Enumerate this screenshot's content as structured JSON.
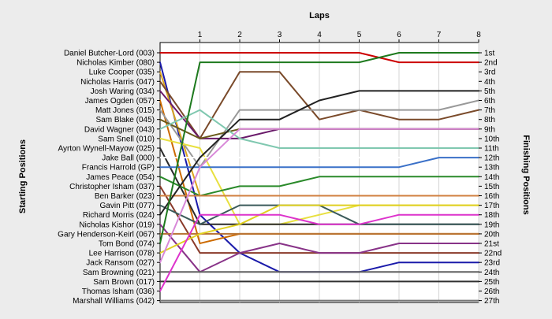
{
  "chart_data": {
    "type": "line",
    "title": "",
    "xlabel": "Laps",
    "ylabel_left": "Starting Positions",
    "ylabel_right": "Finishing Positions",
    "laps": [
      1,
      2,
      3,
      4,
      5,
      6,
      7,
      8
    ],
    "starting_labels": [
      "Daniel Butcher-Lord (003)",
      "Nicholas Kimber (080)",
      "Luke Cooper (035)",
      "Nicholas Harris (047)",
      "Josh Waring (034)",
      "James Ogden (057)",
      "Matt Jones (015)",
      "Sam Blake (045)",
      "David Wagner (043)",
      "Sam Snell (010)",
      "Ayrton Wynell-Mayow (025)",
      "Jake Ball (000)",
      "Francis Harrold (GP)",
      "James Peace (054)",
      "Christopher Isham (037)",
      "Ben Barker (023)",
      "Gavin Pitt (077)",
      "Richard Morris (024)",
      "Nicholas Kishor (019)",
      "Gary Henderson-Keirl (067)",
      "Tom Bond (074)",
      "Lee Harrison (078)",
      "Jack Ransom (027)",
      "Sam Browning (021)",
      "Sam Brown (017)",
      "Thomas Isham (036)",
      "Marshall Williams (042)"
    ],
    "finishing_labels": [
      "1st",
      "2nd",
      "3rd",
      "4th",
      "5th",
      "6th",
      "7th",
      "8th",
      "9th",
      "10th",
      "11th",
      "12th",
      "13th",
      "14th",
      "15th",
      "16th",
      "17th",
      "18th",
      "19th",
      "20th",
      "21st",
      "22nd",
      "23rd",
      "24th",
      "25th",
      "26th",
      "27th"
    ],
    "series": [
      {
        "color": "#cc0000",
        "positions": [
          1,
          1,
          1,
          1,
          1,
          1,
          2,
          2,
          2
        ]
      },
      {
        "color": "#1a1aaa",
        "positions": [
          2,
          18,
          22,
          24,
          24,
          24,
          23,
          23,
          23
        ]
      },
      {
        "color": "#daa520",
        "positions": [
          3,
          16,
          16,
          16,
          16,
          16,
          16,
          16,
          16
        ]
      },
      {
        "color": "#7a4a2a",
        "positions": [
          4,
          10,
          3,
          3,
          8,
          7,
          8,
          8,
          7
        ]
      },
      {
        "color": "#6a1a6a",
        "positions": [
          5,
          10,
          10,
          9,
          9,
          9,
          9,
          9,
          9
        ]
      },
      {
        "color": "#cc6a00",
        "positions": [
          6,
          21,
          20,
          20,
          20,
          20,
          20,
          20,
          20
        ]
      },
      {
        "color": "#999999",
        "positions": [
          7,
          13,
          7,
          7,
          7,
          7,
          7,
          7,
          6
        ]
      },
      {
        "color": "#6a5a1a",
        "positions": [
          8,
          10,
          9,
          9,
          9,
          9,
          9,
          9,
          9
        ]
      },
      {
        "color": "#80c8b0",
        "positions": [
          9,
          7,
          10,
          11,
          11,
          11,
          11,
          11,
          11
        ]
      },
      {
        "color": "#e8e040",
        "positions": [
          10,
          11,
          19,
          19,
          18,
          17,
          17,
          17,
          17
        ]
      },
      {
        "color": "#2a2a2a",
        "positions": [
          11,
          19,
          19,
          19,
          19,
          19,
          19,
          19,
          19
        ]
      },
      {
        "color": "#ffffff",
        "positions": [
          12,
          12,
          12,
          12,
          12,
          12,
          12,
          12,
          12
        ]
      },
      {
        "color": "#3a70c8",
        "positions": [
          13,
          13,
          13,
          13,
          13,
          13,
          13,
          12,
          12
        ]
      },
      {
        "color": "#2a8a2a",
        "positions": [
          14,
          16,
          15,
          15,
          14,
          14,
          14,
          14,
          14
        ]
      },
      {
        "color": "#8a3a2a",
        "positions": [
          15,
          22,
          22,
          22,
          22,
          22,
          22,
          22,
          22
        ]
      },
      {
        "color": "#d08040",
        "positions": [
          16,
          16,
          16,
          16,
          16,
          16,
          16,
          16,
          16
        ]
      },
      {
        "color": "#3a5a5a",
        "positions": [
          17,
          19,
          17,
          17,
          17,
          19,
          19,
          19,
          19
        ]
      },
      {
        "color": "#222222",
        "positions": [
          18,
          12,
          8,
          8,
          6,
          5,
          5,
          5,
          5
        ]
      },
      {
        "color": "#883388",
        "positions": [
          19,
          24,
          22,
          21,
          22,
          22,
          21,
          21,
          21
        ]
      },
      {
        "color": "#b87333",
        "positions": [
          20,
          20,
          20,
          20,
          20,
          20,
          20,
          20,
          20
        ]
      },
      {
        "color": "#1e7a1e",
        "positions": [
          21,
          2,
          2,
          2,
          2,
          2,
          1,
          1,
          1
        ]
      },
      {
        "color": "#e0d020",
        "positions": [
          22,
          20,
          19,
          17,
          17,
          17,
          17,
          17,
          17
        ]
      },
      {
        "color": "#d888d8",
        "positions": [
          23,
          13,
          9,
          9,
          9,
          9,
          9,
          9,
          9
        ]
      },
      {
        "color": "#606060",
        "positions": [
          24,
          24,
          24,
          24,
          24,
          24,
          24,
          24,
          24
        ]
      },
      {
        "color": "#303030",
        "positions": [
          25,
          25,
          25,
          25,
          25,
          25,
          25,
          25,
          25
        ]
      },
      {
        "color": "#dd33cc",
        "positions": [
          26,
          18,
          18,
          18,
          19,
          19,
          18,
          18,
          18
        ]
      },
      {
        "color": "#777777",
        "positions": [
          27,
          27,
          27,
          27,
          27,
          27,
          27,
          27,
          27
        ]
      }
    ]
  }
}
